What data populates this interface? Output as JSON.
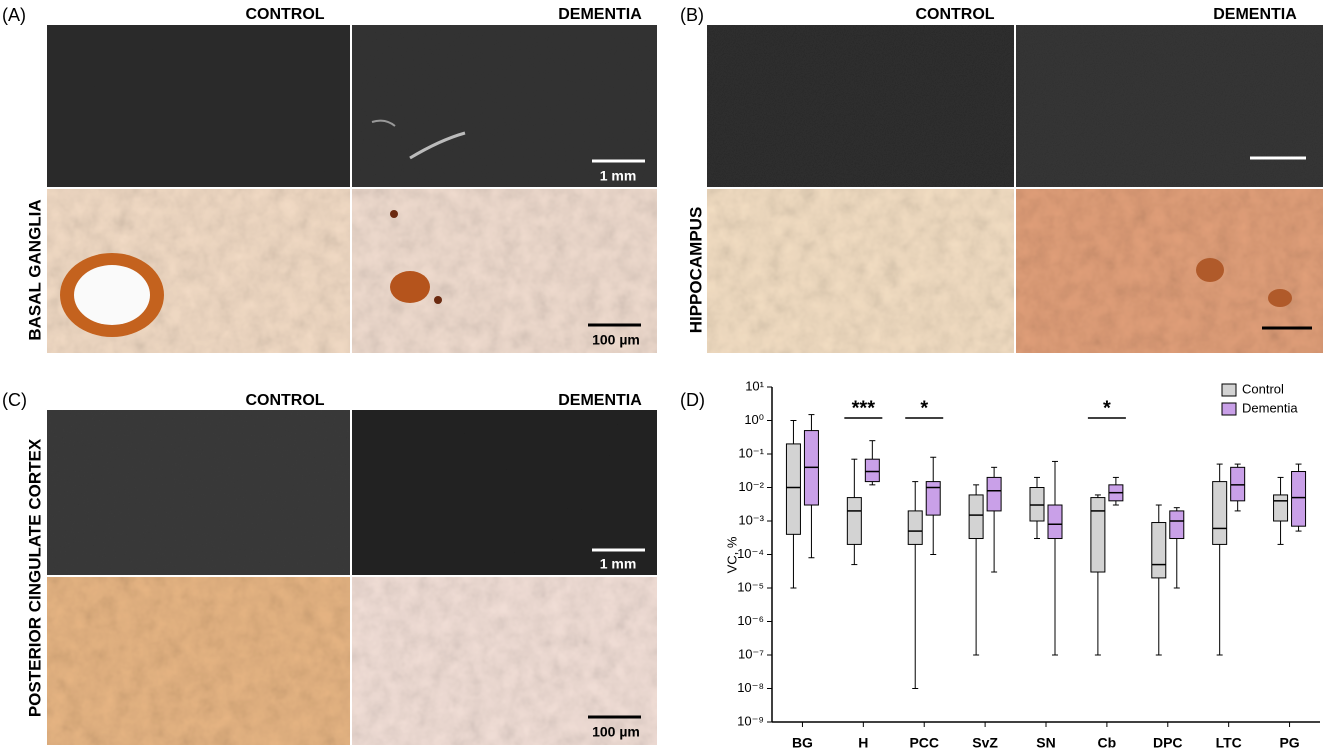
{
  "panels": [
    {
      "label": "(A)",
      "region": "BASAL GANGLIA",
      "columns": [
        "CONTROL",
        "DEMENTIA"
      ],
      "scale_bars": [
        "1 mm",
        "100 µm"
      ]
    },
    {
      "label": "(B)",
      "region": "HIPPOCAMPUS",
      "columns": [
        "CONTROL",
        "DEMENTIA"
      ]
    },
    {
      "label": "(C)",
      "region": "POSTERIOR CINGULATE CORTEX",
      "columns": [
        "CONTROL",
        "DEMENTIA"
      ],
      "scale_bars": [
        "1 mm",
        "100 µm"
      ]
    }
  ],
  "chart_data": {
    "type": "box",
    "panel_label": "(D)",
    "ylabel": "VC, %",
    "log_scale": true,
    "legend": "upper right",
    "categories": [
      "BG",
      "H",
      "PCC",
      "SvZ",
      "SN",
      "Cb",
      "DPC",
      "LTC",
      "PG"
    ],
    "ylim": [
      1e-09,
      10
    ],
    "yticks": [
      {
        "value": 1e-09,
        "label": "10⁻⁹"
      },
      {
        "value": 1e-08,
        "label": "10⁻⁸"
      },
      {
        "value": 1e-07,
        "label": "10⁻⁷"
      },
      {
        "value": 1e-06,
        "label": "10⁻⁶"
      },
      {
        "value": 1e-05,
        "label": "10⁻⁵"
      },
      {
        "value": 0.0001,
        "label": "10⁻⁴"
      },
      {
        "value": 0.001,
        "label": "10⁻³"
      },
      {
        "value": 0.01,
        "label": "10⁻²"
      },
      {
        "value": 0.1,
        "label": "10⁻¹"
      },
      {
        "value": 1,
        "label": "10⁰"
      },
      {
        "value": 10,
        "label": "10¹"
      }
    ],
    "series": [
      {
        "name": "Control",
        "color": "#d3d3d3",
        "min": [
          1e-05,
          5e-05,
          1e-08,
          1e-07,
          0.0003,
          1e-07,
          1e-07,
          1e-07,
          0.0002
        ],
        "q1": [
          0.0004,
          0.0002,
          0.0002,
          0.0003,
          0.001,
          3e-05,
          2e-05,
          0.0002,
          0.001
        ],
        "median": [
          0.01,
          0.002,
          0.0005,
          0.0015,
          0.003,
          0.002,
          5e-05,
          0.0006,
          0.004
        ],
        "q3": [
          0.2,
          0.005,
          0.002,
          0.006,
          0.01,
          0.005,
          0.0009,
          0.015,
          0.006
        ],
        "max": [
          1,
          0.07,
          0.015,
          0.012,
          0.02,
          0.006,
          0.003,
          0.05,
          0.02
        ]
      },
      {
        "name": "Dementia",
        "color": "#c9a0e8",
        "min": [
          8e-05,
          0.012,
          0.0001,
          3e-05,
          1e-07,
          0.003,
          1e-05,
          0.002,
          0.0005
        ],
        "q1": [
          0.003,
          0.015,
          0.0015,
          0.002,
          0.0003,
          0.004,
          0.0003,
          0.004,
          0.0007
        ],
        "median": [
          0.04,
          0.03,
          0.01,
          0.008,
          0.0008,
          0.007,
          0.001,
          0.012,
          0.005
        ],
        "q3": [
          0.5,
          0.07,
          0.015,
          0.02,
          0.003,
          0.012,
          0.002,
          0.04,
          0.03
        ],
        "max": [
          1.5,
          0.25,
          0.08,
          0.04,
          0.06,
          0.02,
          0.0025,
          0.05,
          0.05
        ]
      }
    ],
    "annotations": [
      {
        "category": "H",
        "text": "***"
      },
      {
        "category": "PCC",
        "text": "*"
      },
      {
        "category": "Cb",
        "text": "*"
      }
    ]
  }
}
